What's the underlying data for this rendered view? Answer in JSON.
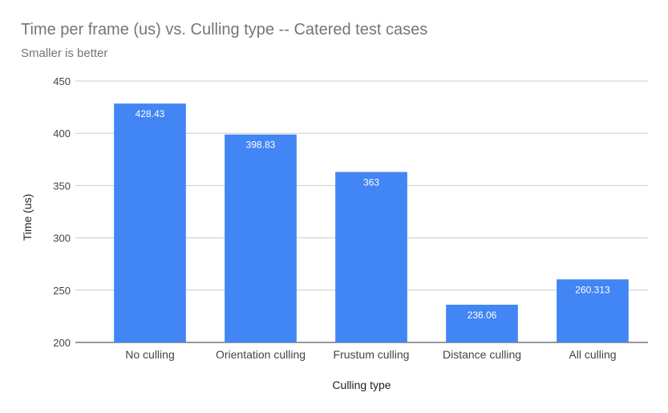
{
  "chart_data": {
    "type": "bar",
    "title": "Time per frame (us) vs. Culling type -- Catered test cases",
    "subtitle": "Smaller is better",
    "xlabel": "Culling type",
    "ylabel": "Time (us)",
    "categories": [
      "No culling",
      "Orientation culling",
      "Frustum culling",
      "Distance culling",
      "All culling"
    ],
    "values": [
      428.43,
      398.83,
      363,
      236.06,
      260.313
    ],
    "data_labels": [
      "428.43",
      "398.83",
      "363",
      "236.06",
      "260.313"
    ],
    "ylim": [
      200,
      450
    ],
    "yticks": [
      200,
      250,
      300,
      350,
      400,
      450
    ],
    "grid": true,
    "legend": "none",
    "colors": {
      "bar": "#4285f4",
      "grid": "#cccccc",
      "axis_text": "#444444",
      "title": "#757575",
      "data_label": "#ffffff"
    }
  }
}
